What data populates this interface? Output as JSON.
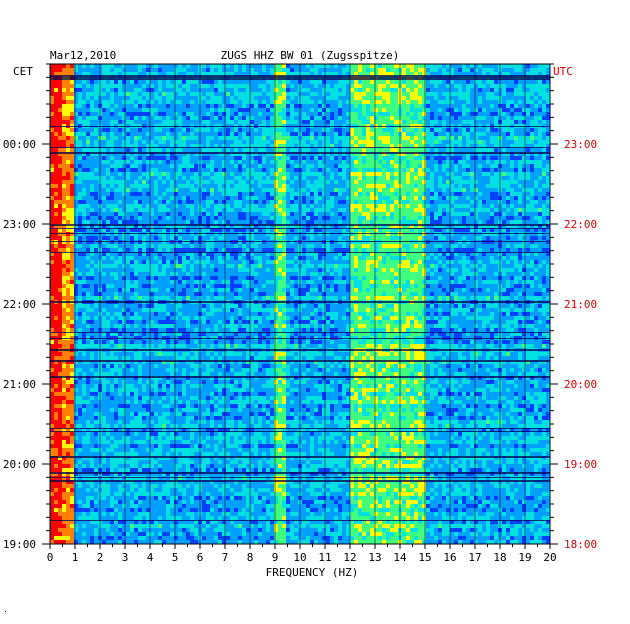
{
  "chart_data": {
    "type": "heatmap",
    "date": "Mar12,2010",
    "title": "ZUGS HHZ BW 01 (Zugsspitze)",
    "xlabel": "FREQUENCY (HZ)",
    "xlim": [
      0,
      20
    ],
    "x_ticks": [
      "0",
      "1",
      "2",
      "3",
      "4",
      "5",
      "6",
      "7",
      "8",
      "9",
      "10",
      "11",
      "12",
      "13",
      "14",
      "15",
      "16",
      "17",
      "18",
      "19",
      "20"
    ],
    "left_axis_title": "CET",
    "right_axis_title": "UTC",
    "left_ticks": [
      "00:00",
      "23:00",
      "22:00",
      "21:00",
      "20:00",
      "19:00"
    ],
    "right_ticks": [
      "23:00",
      "22:00",
      "21:00",
      "20:00",
      "19:00",
      "18:00"
    ],
    "time_range_utc": [
      "18:00",
      "23:50"
    ],
    "colormap": [
      "#0000c8",
      "#0040ff",
      "#00a0ff",
      "#00e0e0",
      "#40ff80",
      "#ffff00",
      "#ff8000",
      "#ff0000"
    ],
    "high_energy_bands_hz": [
      {
        "from": 0,
        "to": 1.0,
        "level": "high"
      },
      {
        "from": 9.0,
        "to": 9.4,
        "level": "medium"
      },
      {
        "from": 12.0,
        "to": 15.0,
        "level": "medium"
      }
    ],
    "footer_mark": "."
  }
}
